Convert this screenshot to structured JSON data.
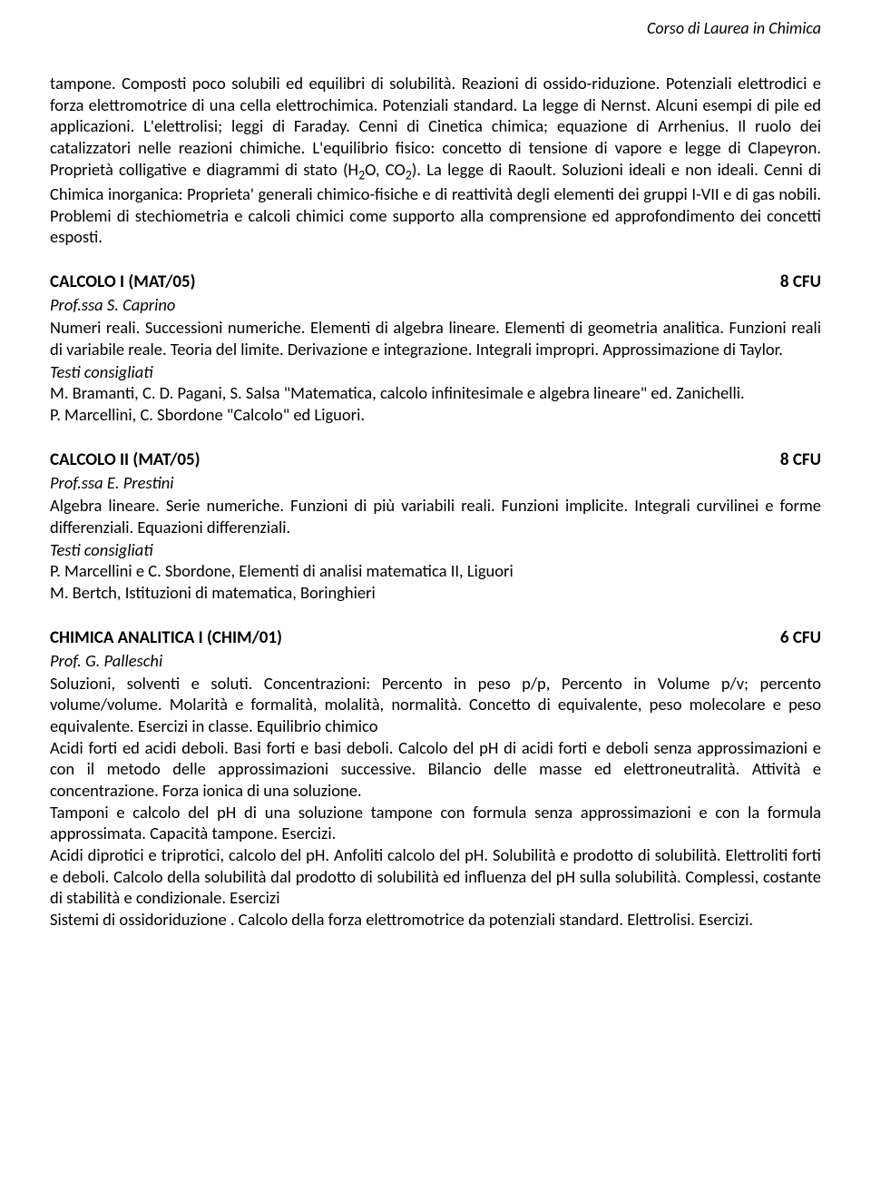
{
  "header": {
    "running_title": "Corso di Laurea in Chimica"
  },
  "intro": {
    "para1": "tampone. Composti poco solubili ed equilibri di solubilità. Reazioni di ossido-riduzione. Potenziali elettrodici e forza elettromotrice di una cella elettrochimica. Potenziali standard. La legge di Nernst. Alcuni esempi di pile ed applicazioni. L'elettrolisi; leggi di Faraday. Cenni di Cinetica chimica; equazione di Arrhenius. Il ruolo dei catalizzatori nelle reazioni chimiche. L'equilibrio fisico: concetto di tensione di vapore e legge di Clapeyron. Proprietà colligative e diagrammi di stato (H",
    "sub1": "2",
    "mid1": "O, CO",
    "sub2": "2",
    "para2": "). La legge di Raoult. Soluzioni ideali e non ideali. Cenni di Chimica inorganica: Proprieta' generali chimico-fisiche e di reattività degli elementi dei gruppi I-VII e di gas nobili. Problemi di stechiometria e calcoli chimici come supporto alla comprensione ed approfondimento dei concetti esposti."
  },
  "courses": {
    "calc1": {
      "title": "CALCOLO I  (MAT/05)",
      "cfu": "8 CFU",
      "prof": "Prof.ssa S. Caprino",
      "desc": "Numeri reali. Successioni numeriche. Elementi di algebra lineare. Elementi di geometria analitica. Funzioni reali di variabile reale. Teoria del limite. Derivazione e integrazione. Integrali impropri. Approssimazione di Taylor.",
      "testi_label": "Testi consigliati",
      "ref1": "M. Bramanti, C. D. Pagani, S. Salsa \"Matematica, calcolo infinitesimale e algebra lineare\" ed. Zanichelli.",
      "ref2": "P. Marcellini, C. Sbordone \"Calcolo\" ed Liguori."
    },
    "calc2": {
      "title": "CALCOLO II  (MAT/05)",
      "cfu": "8 CFU",
      "prof": "Prof.ssa E. Prestini",
      "desc": "Algebra lineare. Serie numeriche. Funzioni di più variabili reali. Funzioni implicite. Integrali curvilinei e forme differenziali. Equazioni differenziali.",
      "testi_label": "Testi consigliati",
      "ref1": "P. Marcellini e C. Sbordone, Elementi di analisi matematica II, Liguori",
      "ref2": "M. Bertch, Istituzioni di matematica, Boringhieri"
    },
    "analitica": {
      "title": "CHIMICA ANALITICA I  (CHIM/01)",
      "cfu": "6 CFU",
      "prof": "Prof. G. Palleschi",
      "desc": "Soluzioni, solventi e soluti. Concentrazioni: Percento in peso p/p, Percento in Volume p/v; percento volume/volume. Molarità e formalità, molalità, normalità. Concetto di equivalente, peso molecolare e peso equivalente. Esercizi in classe. Equilibrio chimico\nAcidi forti ed acidi deboli. Basi forti e basi deboli. Calcolo del pH di acidi forti e deboli senza approssimazioni e con il metodo delle approssimazioni successive. Bilancio delle masse ed elettroneutralità. Attività e concentrazione. Forza ionica di una soluzione.\nTamponi e calcolo del pH di una soluzione tampone con formula senza approssimazioni e con la formula approssimata. Capacità tampone. Esercizi.\nAcidi diprotici e triprotici, calcolo del pH. Anfoliti calcolo del pH. Solubilità e prodotto di solubilità. Elettroliti forti e deboli. Calcolo della solubilità dal prodotto di solubilità ed influenza del pH sulla solubilità. Complessi, costante di stabilità e condizionale. Esercizi\nSistemi di ossidoriduzione . Calcolo della forza elettromotrice da potenziali standard. Elettrolisi. Esercizi."
    }
  }
}
